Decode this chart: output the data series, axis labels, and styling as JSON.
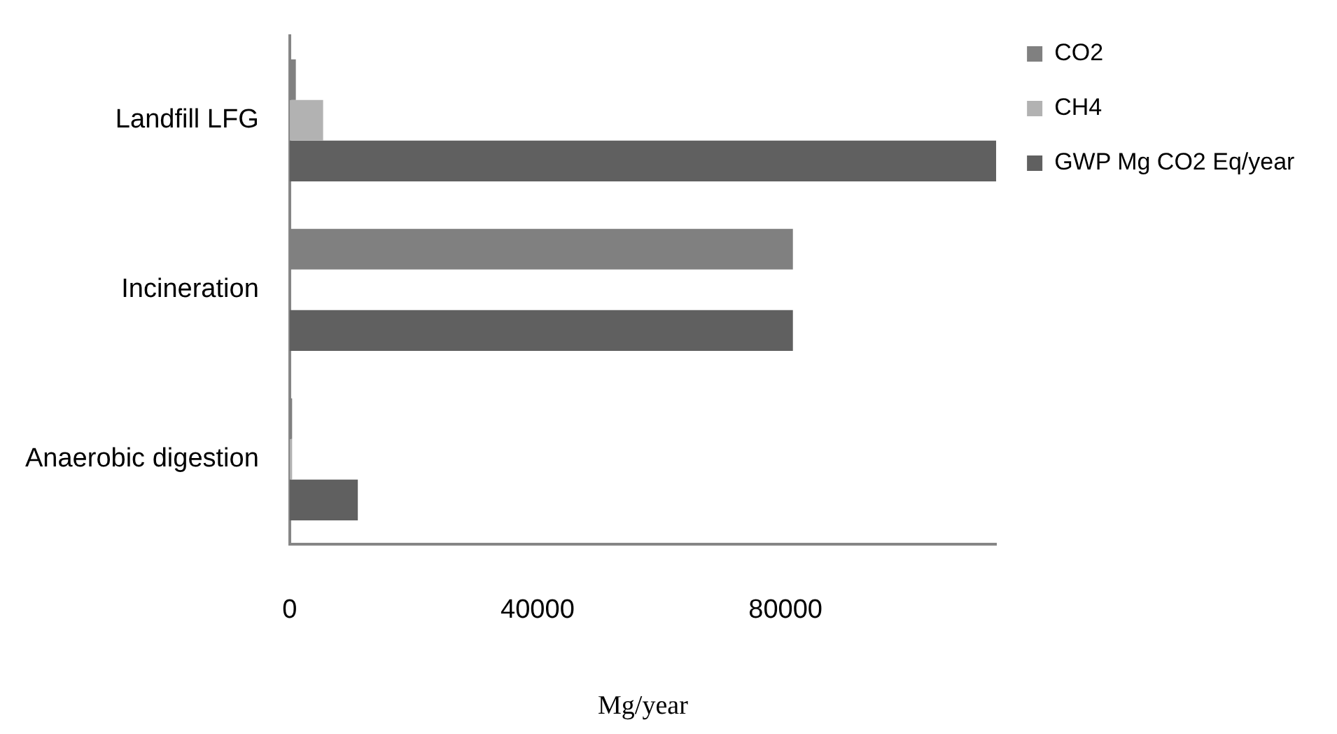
{
  "chart_data": {
    "type": "bar",
    "orientation": "horizontal",
    "xlabel": "Mg/year",
    "categories": [
      "Landfill LFG",
      "Incineration",
      "Anaerobic digestion"
    ],
    "series": [
      {
        "name": "CO2",
        "color": "#808080",
        "values": [
          1000,
          81200,
          400
        ]
      },
      {
        "name": "CH4",
        "color": "#b2b2b2",
        "values": [
          5400,
          0,
          400
        ]
      },
      {
        "name": "GWP Mg CO2 Eq/year",
        "color": "#606060",
        "values": [
          114000,
          81200,
          11000
        ]
      }
    ],
    "xlim": [
      0,
      114000
    ],
    "xticks": [
      0,
      40000,
      80000
    ],
    "grid": false,
    "legend": "top right"
  }
}
